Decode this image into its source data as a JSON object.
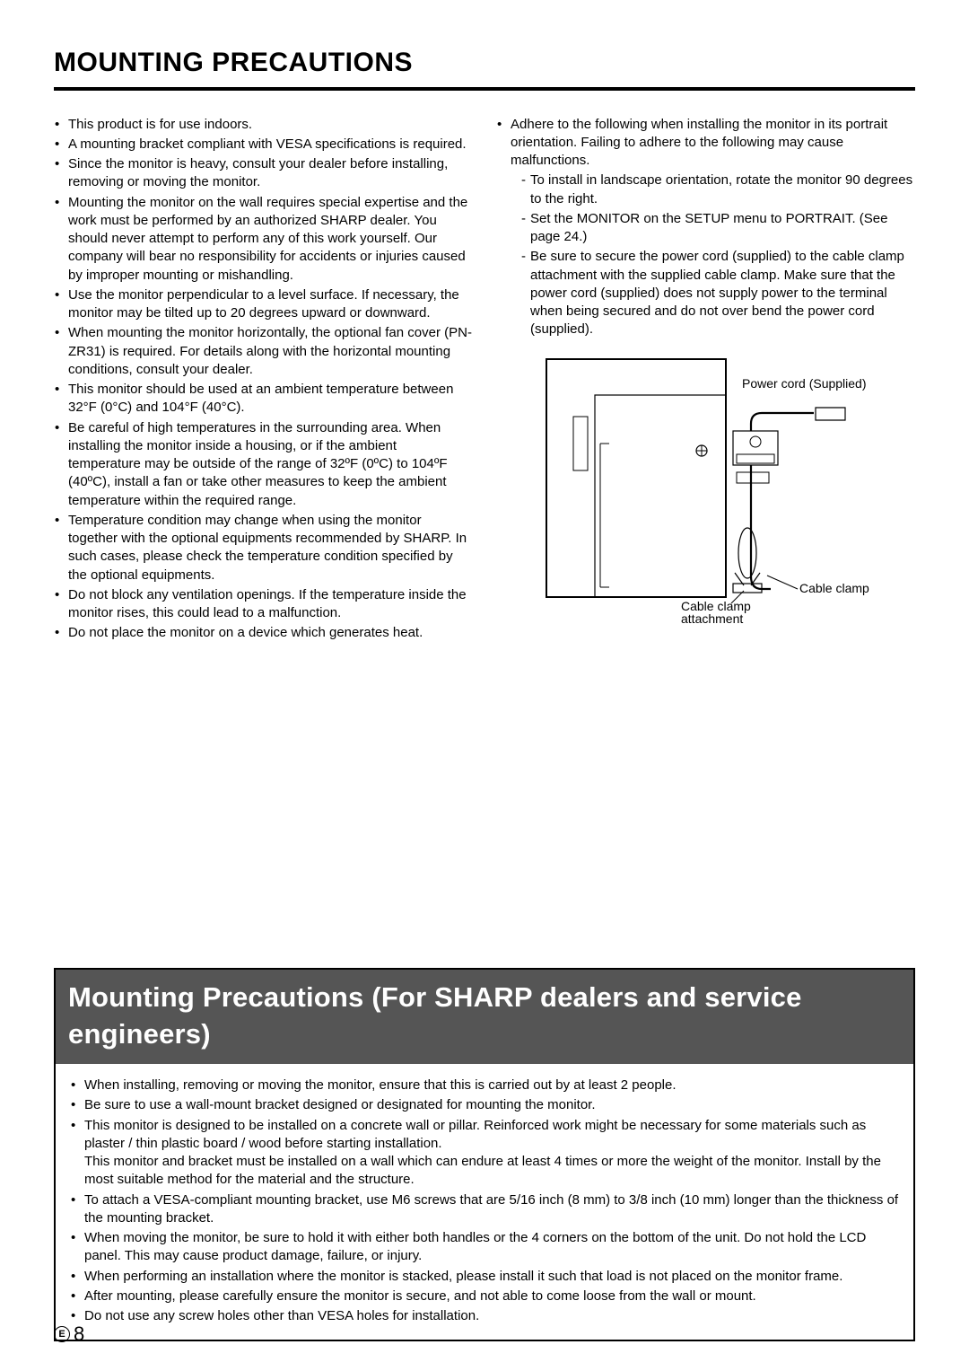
{
  "title": "MOUNTING PRECAUTIONS",
  "left_list": [
    "This product is for use indoors.",
    "A mounting bracket compliant with VESA specifications is required.",
    "Since the monitor is heavy, consult your dealer before installing, removing or moving the monitor.",
    "Mounting the monitor on the wall requires special expertise and the work must be performed by an authorized SHARP dealer. You should never attempt to perform any of this work yourself. Our company will bear no responsibility for accidents or injuries caused by improper mounting or mishandling.",
    "Use the monitor perpendicular to a level surface. If necessary, the monitor may be tilted up to 20 degrees upward or downward.",
    "When mounting the monitor horizontally, the optional fan cover (PN-ZR31) is required. For details along with the horizontal mounting conditions, consult your dealer.",
    "This monitor should be used at an ambient temperature between 32°F (0°C) and 104°F (40°C).",
    "Be careful of high temperatures in the surrounding area. When installing the monitor inside a housing, or if the ambient temperature may be outside of the range of 32ºF (0ºC) to 104ºF (40ºC), install a fan or take other measures to keep the ambient temperature within the required range.",
    "Temperature condition may change when using the monitor together with the optional equipments recommended by SHARP. In such cases, please check the temperature condition specified by the optional equipments.",
    "Do not block any ventilation openings. If the temperature inside the monitor rises, this could lead to a malfunction.",
    "Do not place the monitor on a device which generates heat."
  ],
  "right_intro": "Adhere to the following when installing the monitor in its portrait orientation. Failing to adhere to the following may cause malfunctions.",
  "right_sub": [
    "To install in landscape orientation, rotate the monitor 90 degrees to the right.",
    "Set the MONITOR on the SETUP menu to PORTRAIT. (See page 24.)",
    "Be sure to secure the power cord (supplied) to the cable clamp attachment with the supplied cable clamp. Make sure that the power cord (supplied) does not supply power to the terminal when being secured and do not over bend the power cord (supplied)."
  ],
  "diagram_labels": {
    "power_cord": "Power cord (Supplied)",
    "cable_clamp": "Cable clamp",
    "cable_clamp_attachment": "Cable clamp\nattachment"
  },
  "banner_title": "Mounting Precautions (For SHARP dealers and service engineers)",
  "banner_list": [
    "When installing, removing or moving the monitor, ensure that this is carried out by at least 2 people.",
    "Be sure to use a wall-mount bracket designed or designated for mounting the monitor.",
    "This monitor is designed to be installed on a concrete wall or pillar. Reinforced work might be necessary for some materials such as plaster / thin plastic board / wood before starting installation.\nThis monitor and bracket must be installed on a wall which can endure at least 4 times or more the weight of the monitor. Install by the most suitable method for the material and the structure.",
    "To attach a VESA-compliant mounting bracket, use M6 screws that are 5/16 inch (8 mm) to 3/8 inch (10 mm) longer than the thickness of the mounting bracket.",
    "When moving the monitor, be sure to hold it with either both handles or the 4 corners on the bottom of the unit. Do not hold the LCD panel. This may cause product damage, failure, or injury.",
    "When performing an installation where the monitor is stacked, please install it such that load is not placed on the monitor frame.",
    "After mounting, please carefully ensure the monitor is secure, and not able to come loose from the wall or mount.",
    "Do not use any screw holes other than VESA holes for installation."
  ],
  "page_marker": {
    "letter": "E",
    "number": "8"
  },
  "colors": {
    "banner_bg": "#555555",
    "text": "#000000",
    "bg": "#ffffff"
  }
}
